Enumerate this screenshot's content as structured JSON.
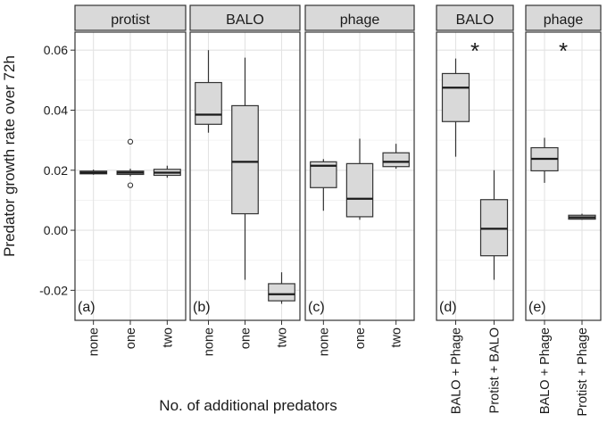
{
  "chart_data": {
    "type": "box",
    "ylabel": "Predator growth rate over 72h",
    "xlabel": "No. of additional predators",
    "ylim": [
      -0.03,
      0.066
    ],
    "yticks": [
      {
        "value": 0.06,
        "label": "0.06"
      },
      {
        "value": 0.04,
        "label": "0.04"
      },
      {
        "value": 0.02,
        "label": "0.02"
      },
      {
        "value": 0.0,
        "label": "0.00"
      },
      {
        "value": -0.02,
        "label": "-0.02"
      }
    ],
    "panels": [
      {
        "title": "protist",
        "tag": "(a)",
        "significance": "",
        "categories": [
          "none",
          "one",
          "two"
        ],
        "boxes": [
          {
            "whisker_low": 0.0185,
            "q1": 0.0188,
            "median": 0.0192,
            "q3": 0.0197,
            "whisker_high": 0.0202,
            "outliers": []
          },
          {
            "whisker_low": 0.018,
            "q1": 0.0186,
            "median": 0.0192,
            "q3": 0.0197,
            "whisker_high": 0.0205,
            "outliers": [
              0.0295,
              0.015
            ]
          },
          {
            "whisker_low": 0.0175,
            "q1": 0.0183,
            "median": 0.0192,
            "q3": 0.0203,
            "whisker_high": 0.0215,
            "outliers": []
          }
        ]
      },
      {
        "title": "BALO",
        "tag": "(b)",
        "significance": "",
        "categories": [
          "none",
          "one",
          "two"
        ],
        "boxes": [
          {
            "whisker_low": 0.0325,
            "q1": 0.0353,
            "median": 0.0385,
            "q3": 0.0492,
            "whisker_high": 0.06,
            "outliers": []
          },
          {
            "whisker_low": -0.0165,
            "q1": 0.0055,
            "median": 0.0228,
            "q3": 0.0415,
            "whisker_high": 0.0575,
            "outliers": []
          },
          {
            "whisker_low": -0.0245,
            "q1": -0.0235,
            "median": -0.0213,
            "q3": -0.0178,
            "whisker_high": -0.014,
            "outliers": []
          }
        ]
      },
      {
        "title": "phage",
        "tag": "(c)",
        "significance": "",
        "categories": [
          "none",
          "one",
          "two"
        ],
        "boxes": [
          {
            "whisker_low": 0.0065,
            "q1": 0.0142,
            "median": 0.0215,
            "q3": 0.0228,
            "whisker_high": 0.0237,
            "outliers": []
          },
          {
            "whisker_low": 0.0035,
            "q1": 0.0045,
            "median": 0.0105,
            "q3": 0.0222,
            "whisker_high": 0.0305,
            "outliers": []
          },
          {
            "whisker_low": 0.0205,
            "q1": 0.0212,
            "median": 0.0228,
            "q3": 0.0258,
            "whisker_high": 0.0288,
            "outliers": []
          }
        ]
      },
      {
        "title": "BALO",
        "tag": "(d)",
        "significance": "*",
        "categories": [
          "BALO + Phage",
          "Protist + BALO"
        ],
        "boxes": [
          {
            "whisker_low": 0.0245,
            "q1": 0.0362,
            "median": 0.0475,
            "q3": 0.0522,
            "whisker_high": 0.0572,
            "outliers": []
          },
          {
            "whisker_low": -0.0165,
            "q1": -0.0085,
            "median": 0.0005,
            "q3": 0.0102,
            "whisker_high": 0.02,
            "outliers": []
          }
        ]
      },
      {
        "title": "phage",
        "tag": "(e)",
        "significance": "*",
        "categories": [
          "BALO + Phage",
          "Protist + Phage"
        ],
        "boxes": [
          {
            "whisker_low": 0.0158,
            "q1": 0.0198,
            "median": 0.0238,
            "q3": 0.0275,
            "whisker_high": 0.0308,
            "outliers": []
          },
          {
            "whisker_low": 0.0035,
            "q1": 0.0037,
            "median": 0.0043,
            "q3": 0.005,
            "whisker_high": 0.0055,
            "outliers": []
          }
        ]
      }
    ]
  }
}
